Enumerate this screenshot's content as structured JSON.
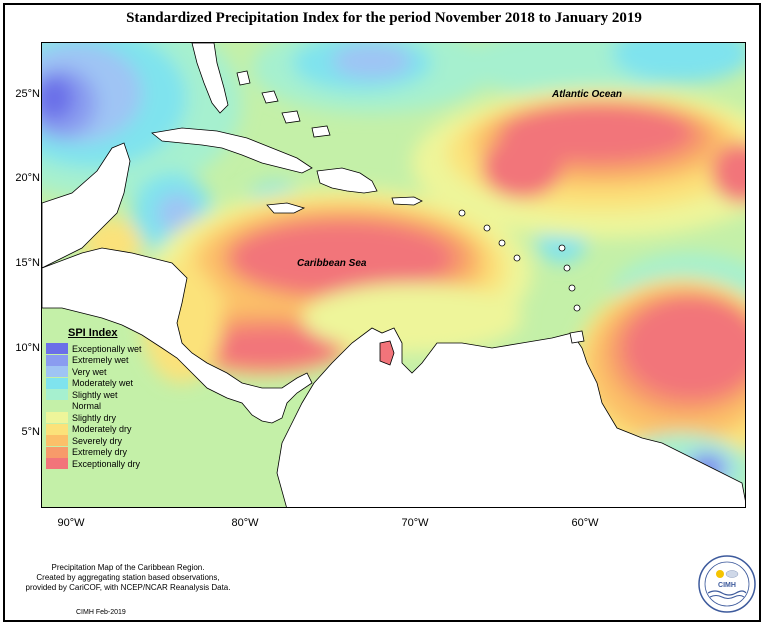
{
  "title": "Standardized Precipitation Index for the period November 2018 to January 2019",
  "lat_labels": [
    "25°N",
    "20°N",
    "15°N",
    "10°N",
    "5°N"
  ],
  "lon_labels": [
    "90°W",
    "80°W",
    "70°W",
    "60°W"
  ],
  "map_labels": {
    "atlantic": "Atlantic Ocean",
    "caribbean": "Caribbean Sea"
  },
  "legend": {
    "title": "SPI Index",
    "items": [
      {
        "label": "Exceptionally wet",
        "color": "#6b6fe8"
      },
      {
        "label": "Extremely wet",
        "color": "#8a9cf0"
      },
      {
        "label": "Very wet",
        "color": "#9fc4f4"
      },
      {
        "label": "Moderately wet",
        "color": "#7fe3ee"
      },
      {
        "label": "Slightly wet",
        "color": "#a6f0cf"
      },
      {
        "label": "Normal",
        "color": "#c4f0a8"
      },
      {
        "label": "Slightly dry",
        "color": "#eef59a"
      },
      {
        "label": "Moderately dry",
        "color": "#fbe27a"
      },
      {
        "label": "Severely dry",
        "color": "#fbc069"
      },
      {
        "label": "Extremely dry",
        "color": "#f79a6a"
      },
      {
        "label": "Exceptionally dry",
        "color": "#f2747a"
      }
    ]
  },
  "credits": {
    "line1": "Precipitation Map of the Caribbean Region.",
    "line2": "Created by aggregating station based observations,",
    "line3": "provided by CariCOF, with NCEP/NCAR Reanalysis Data.",
    "footer": "CIMH Feb-2019"
  },
  "logo_text": "CIMH"
}
